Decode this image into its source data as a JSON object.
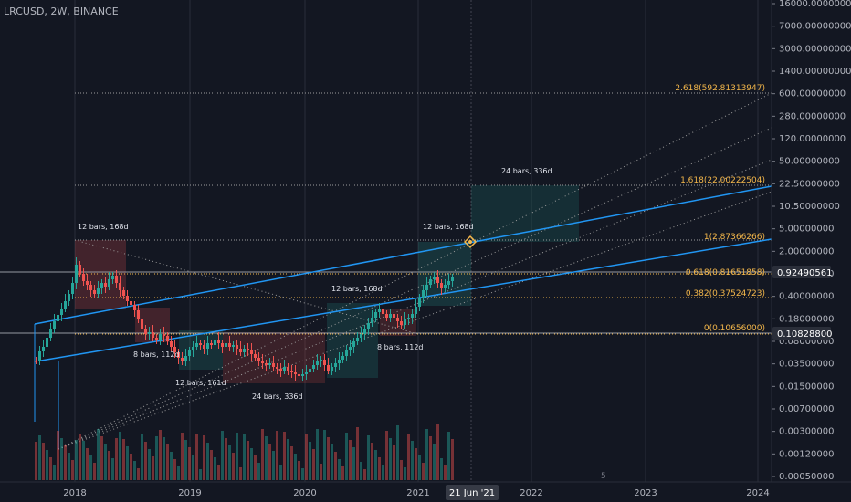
{
  "title": "LRCUSD, 2W, BINANCE",
  "price_axis_labels": [
    "16000.00000000",
    "7000.00000000",
    "3000.00000000",
    "1400.00000000",
    "600.00000000",
    "280.00000000",
    "120.00000000",
    "50.00000000",
    "22.50000000",
    "10.50000000",
    "5.00000000",
    "2.00000000",
    "0.90000000",
    "0.40000000",
    "0.18000000",
    "0.08000000",
    "0.03500000",
    "0.01500000",
    "0.00700000",
    "0.00300000",
    "0.00120000",
    "0.00050000"
  ],
  "time_axis_labels": [
    "2018",
    "2019",
    "2020",
    "2021",
    "2022",
    "2023",
    "2024"
  ],
  "crosshair_date": "21 Jun '21",
  "current_price": "0.92490561",
  "marker_price": "0.10828800",
  "fib_labels": [
    "2.618(592.81313947)",
    "1.618(22.00222504)",
    "1(2.87366266)",
    "0.618(0.81651858)",
    "0.382(0.37524723)",
    "0(0.10656000)"
  ],
  "range_notes": [
    "12 bars, 168d",
    "8 bars, 112d",
    "12 bars, 161d",
    "24 bars, 336d",
    "12 bars, 168d",
    "8 bars, 112d",
    "12 bars, 168d",
    "24 bars, 336d"
  ],
  "scale_mark": "5",
  "colors": {
    "background": "#131722",
    "up": "#26a69a",
    "down": "#ef5350",
    "trend_line": "#2196f3",
    "fib": "#f5b84b",
    "grid": "#2a2e39"
  }
}
